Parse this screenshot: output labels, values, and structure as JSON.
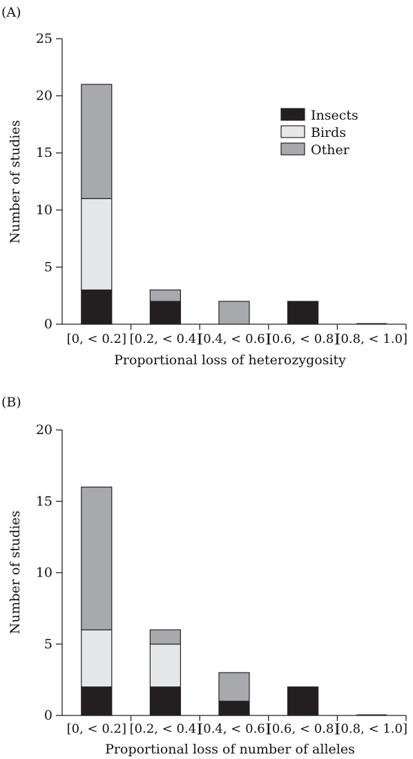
{
  "colors": {
    "insects": "#231f20",
    "birds": "#e6e7e8",
    "other": "#a7a9ac"
  },
  "legend": {
    "items": [
      {
        "key": "insects",
        "label": "Insects"
      },
      {
        "key": "birds",
        "label": "Birds"
      },
      {
        "key": "other",
        "label": "Other"
      }
    ]
  },
  "chart_data": [
    {
      "panel": "(A)",
      "type": "bar",
      "stacked": true,
      "categories": [
        "[0, < 0.2]",
        "[0.2, < 0.4]",
        "[0.4, < 0.6]",
        "[0.6, < 0.8]",
        "[0.8, < 1.0]"
      ],
      "series": [
        {
          "name": "Insects",
          "key": "insects",
          "values": [
            3,
            2,
            0,
            2,
            0
          ]
        },
        {
          "name": "Birds",
          "key": "birds",
          "values": [
            8,
            0,
            0,
            0,
            0
          ]
        },
        {
          "name": "Other",
          "key": "other",
          "values": [
            10,
            1,
            2,
            0,
            0
          ]
        }
      ],
      "ylim": [
        0,
        25
      ],
      "yticks": [
        0,
        5,
        10,
        15,
        20,
        25
      ],
      "xlabel": "Proportional loss of heterozygosity",
      "ylabel": "Number of studies",
      "legend_position": "top-right"
    },
    {
      "panel": "(B)",
      "type": "bar",
      "stacked": true,
      "categories": [
        "[0, < 0.2]",
        "[0.2, < 0.4]",
        "[0.4, < 0.6]",
        "[0.6, < 0.8]",
        "[0.8, < 1.0]"
      ],
      "series": [
        {
          "name": "Insects",
          "key": "insects",
          "values": [
            2,
            2,
            1,
            2,
            0
          ]
        },
        {
          "name": "Birds",
          "key": "birds",
          "values": [
            4,
            3,
            0,
            0,
            0
          ]
        },
        {
          "name": "Other",
          "key": "other",
          "values": [
            10,
            1,
            2,
            0,
            0
          ]
        }
      ],
      "ylim": [
        0,
        20
      ],
      "yticks": [
        0,
        5,
        10,
        15,
        20
      ],
      "xlabel": "Proportional loss of number of alleles",
      "ylabel": "Number of studies"
    }
  ]
}
